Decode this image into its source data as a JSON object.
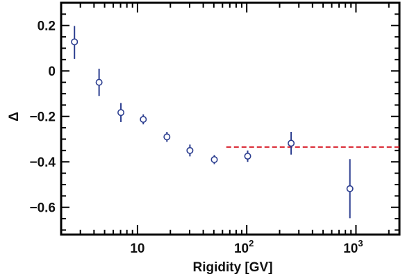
{
  "chart_data": {
    "type": "scatter",
    "xlabel": "Rigidity [GV]",
    "ylabel": "Δ",
    "x_scale": "log",
    "xlim": [
      2.0,
      2500
    ],
    "ylim": [
      -0.72,
      0.3
    ],
    "x_ticks": [
      {
        "value": 10,
        "base": "10",
        "exp": ""
      },
      {
        "value": 100,
        "base": "10",
        "exp": "2"
      },
      {
        "value": 1000,
        "base": "10",
        "exp": "3"
      }
    ],
    "y_ticks": [
      {
        "value": 0.2,
        "label": "0.2"
      },
      {
        "value": 0,
        "label": "0"
      },
      {
        "value": -0.2,
        "label": "−0.2"
      },
      {
        "value": -0.4,
        "label": "−0.4"
      },
      {
        "value": -0.6,
        "label": "−0.6"
      }
    ],
    "series": [
      {
        "marker": "open-circle",
        "color": "#2b3d8f",
        "points": [
          {
            "x": 2.65,
            "y": 0.128,
            "err_low": 0.075,
            "err_high": 0.07
          },
          {
            "x": 4.45,
            "y": -0.05,
            "err_low": 0.06,
            "err_high": 0.06
          },
          {
            "x": 7.05,
            "y": -0.183,
            "err_low": 0.042,
            "err_high": 0.042
          },
          {
            "x": 11.3,
            "y": -0.213,
            "err_low": 0.022,
            "err_high": 0.022
          },
          {
            "x": 18.6,
            "y": -0.29,
            "err_low": 0.022,
            "err_high": 0.022
          },
          {
            "x": 30.2,
            "y": -0.35,
            "err_low": 0.026,
            "err_high": 0.026
          },
          {
            "x": 50.5,
            "y": -0.39,
            "err_low": 0.02,
            "err_high": 0.02
          },
          {
            "x": 102,
            "y": -0.375,
            "err_low": 0.025,
            "err_high": 0.025
          },
          {
            "x": 255,
            "y": -0.318,
            "err_low": 0.05,
            "err_high": 0.05
          },
          {
            "x": 880,
            "y": -0.518,
            "err_low": 0.13,
            "err_high": 0.13
          }
        ]
      }
    ],
    "reference_line": {
      "x_start": 65,
      "x_end": 2500,
      "y": -0.335,
      "color": "#d81e2a",
      "style": "dashed"
    },
    "grid": false
  }
}
